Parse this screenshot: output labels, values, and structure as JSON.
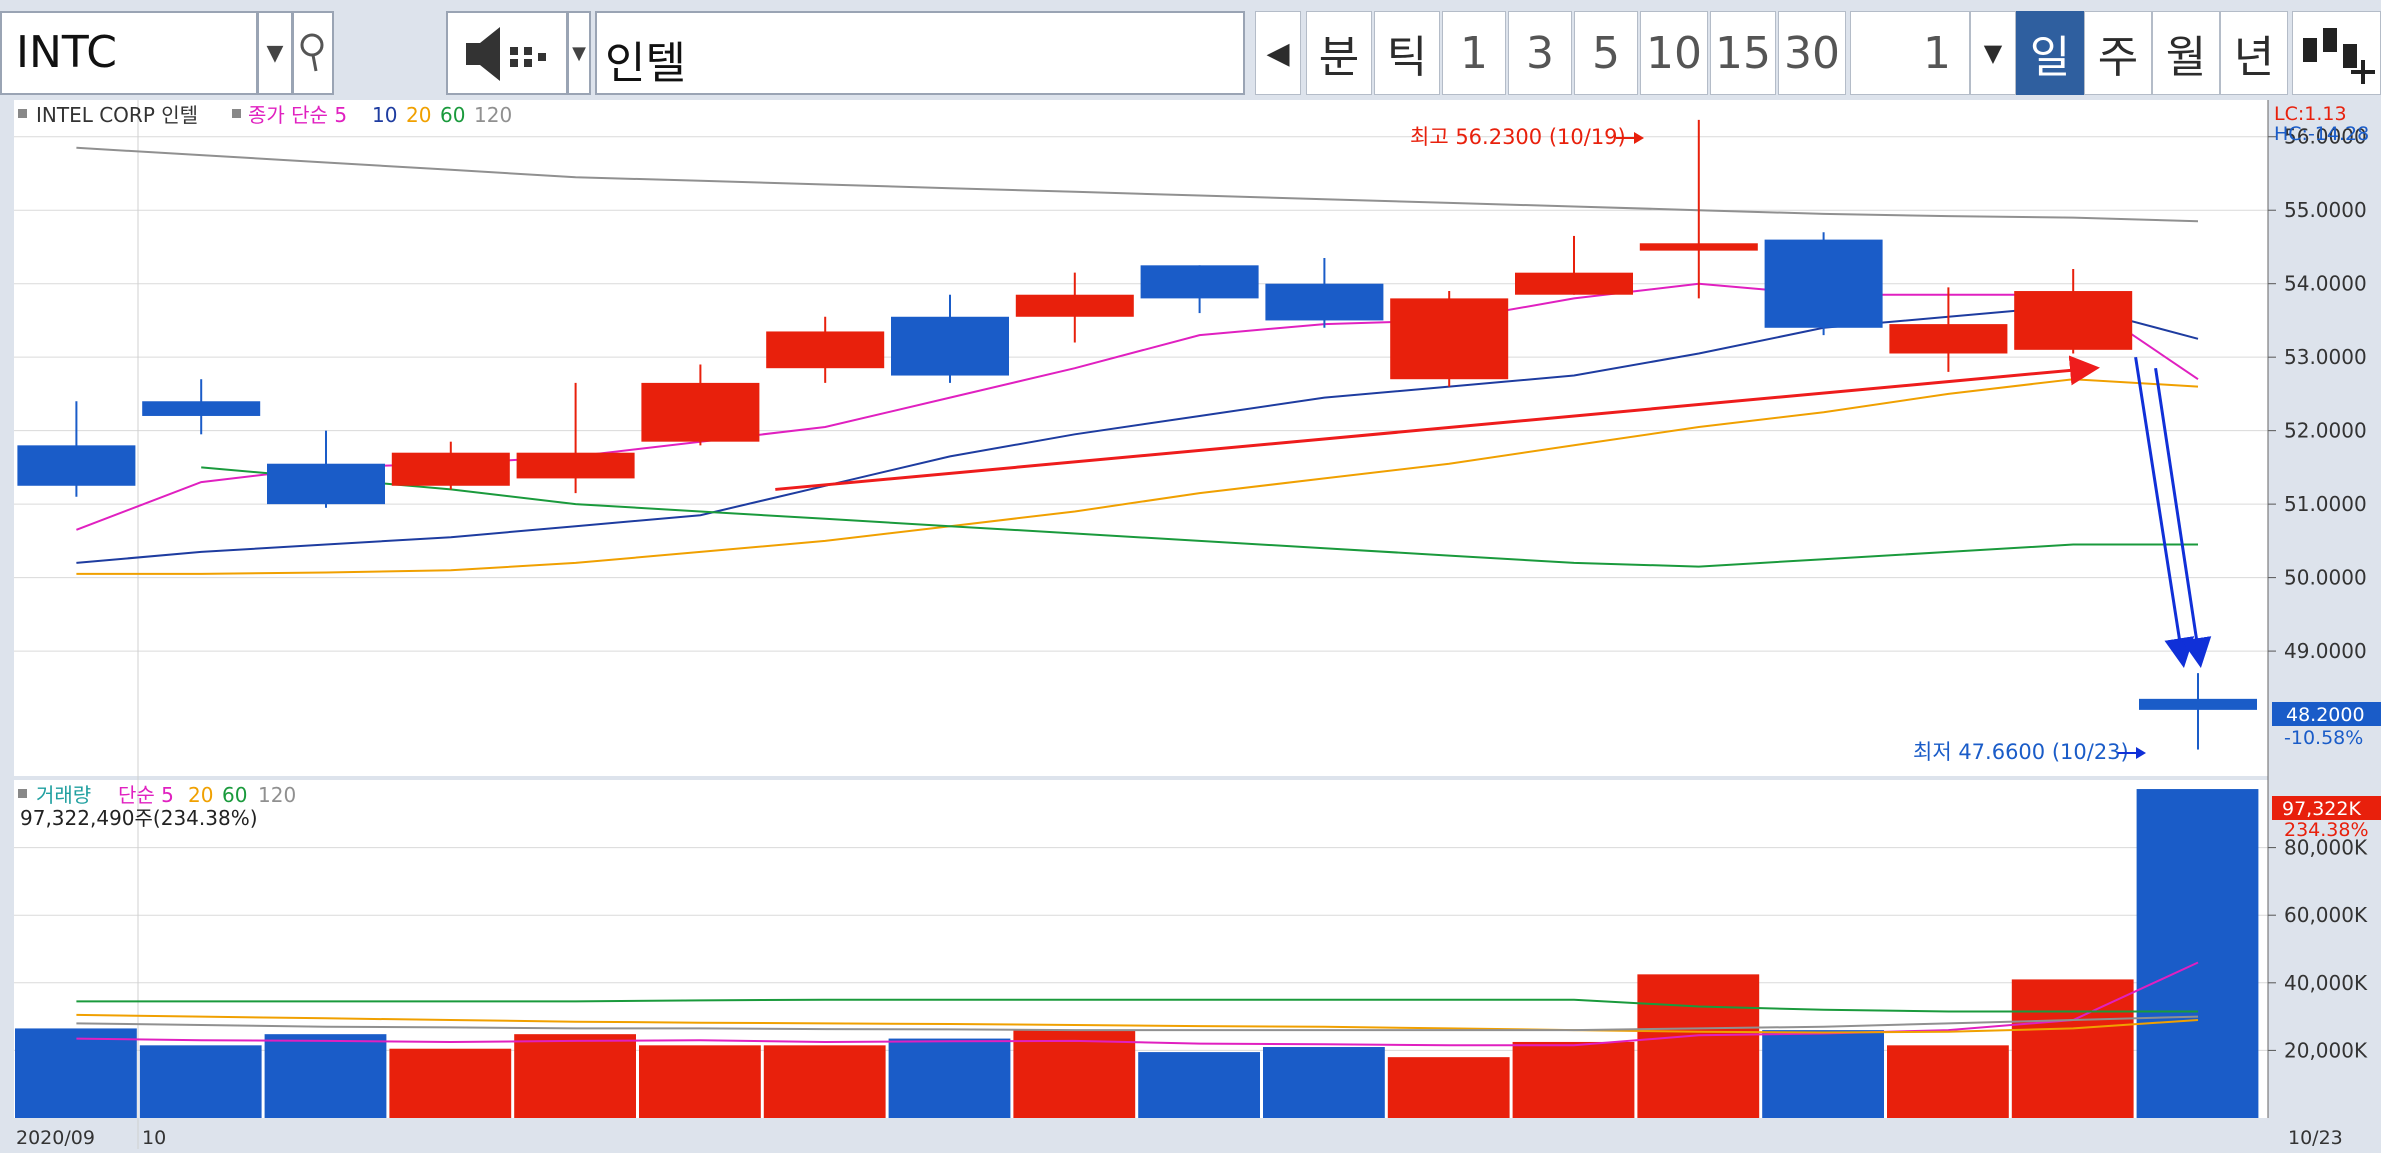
{
  "toolbar": {
    "symbol": "INTC",
    "name": "인텔",
    "period_buttons": [
      "분",
      "틱",
      "1",
      "3",
      "5",
      "10",
      "15",
      "30"
    ],
    "count": "1",
    "interval_buttons": [
      "일",
      "주",
      "월",
      "년"
    ],
    "active_interval": "일"
  },
  "price_legend": {
    "title": "INTEL CORP  인텔",
    "ma_label": "종가 단순 5",
    "ma_periods": [
      "10",
      "20",
      "60",
      "120"
    ]
  },
  "volume_legend": {
    "title": "거래량",
    "ma_label": "단순 5",
    "ma_periods": [
      "20",
      "60",
      "120"
    ],
    "current": "97,322,490주(234.38%)"
  },
  "status": {
    "lc": "LC:1.13",
    "hc": "HC:-14.28"
  },
  "annotations": {
    "high_label": "최고 56.2300 (10/19)",
    "low_label": "최저 47.6600 (10/23)",
    "last_price": "48.2000",
    "last_change": "-10.58%",
    "volume_last": "97,322K",
    "volume_change": "234.38%"
  },
  "colors": {
    "up": "#e8200c",
    "down": "#1a5cc8",
    "ma5": "#e020c0",
    "ma10": "#1e3ca0",
    "ma20": "#f0a000",
    "ma60": "#1a9a3c",
    "ma120": "#909090",
    "trend_up": "#ee1c1c",
    "trend_down": "#1030d8"
  },
  "chart_data": [
    {
      "type": "candlestick",
      "x_labels": [
        "2020/09",
        "10",
        "10/23"
      ],
      "ylim": [
        47.3,
        56.5
      ],
      "y_ticks": [
        "56.0000",
        "55.0000",
        "54.0000",
        "53.0000",
        "52.0000",
        "51.0000",
        "50.0000",
        "49.0000"
      ],
      "candles": [
        {
          "open": 51.8,
          "high": 52.4,
          "low": 51.1,
          "close": 51.25
        },
        {
          "open": 52.4,
          "high": 52.7,
          "low": 51.95,
          "close": 52.2
        },
        {
          "open": 51.55,
          "high": 52.0,
          "low": 50.95,
          "close": 51.0
        },
        {
          "open": 51.25,
          "high": 51.85,
          "low": 51.2,
          "close": 51.7
        },
        {
          "open": 51.35,
          "high": 52.65,
          "low": 51.15,
          "close": 51.7
        },
        {
          "open": 51.85,
          "high": 52.9,
          "low": 51.8,
          "close": 52.65
        },
        {
          "open": 52.85,
          "high": 53.55,
          "low": 52.65,
          "close": 53.35
        },
        {
          "open": 53.55,
          "high": 53.85,
          "low": 52.65,
          "close": 52.75
        },
        {
          "open": 53.55,
          "high": 54.15,
          "low": 53.2,
          "close": 53.85
        },
        {
          "open": 54.25,
          "high": 54.25,
          "low": 53.6,
          "close": 53.8
        },
        {
          "open": 54.0,
          "high": 54.35,
          "low": 53.4,
          "close": 53.5
        },
        {
          "open": 52.7,
          "high": 53.9,
          "low": 52.6,
          "close": 53.8
        },
        {
          "open": 53.85,
          "high": 54.65,
          "low": 53.85,
          "close": 54.15
        },
        {
          "open": 54.45,
          "high": 56.23,
          "low": 53.8,
          "close": 54.55
        },
        {
          "open": 54.6,
          "high": 54.7,
          "low": 53.3,
          "close": 53.4
        },
        {
          "open": 53.05,
          "high": 53.95,
          "low": 52.8,
          "close": 53.45
        },
        {
          "open": 53.1,
          "high": 54.2,
          "low": 53.05,
          "close": 53.9
        },
        {
          "open": 48.35,
          "high": 48.7,
          "low": 47.66,
          "close": 48.2
        }
      ],
      "moving_averages": {
        "5": [
          50.65,
          51.3,
          51.5,
          51.55,
          51.65,
          51.85,
          52.05,
          52.45,
          52.85,
          53.3,
          53.45,
          53.5,
          53.8,
          54.0,
          53.85,
          53.85,
          53.85,
          52.7
        ],
        "10": [
          50.2,
          50.35,
          50.45,
          50.55,
          50.7,
          50.85,
          51.25,
          51.65,
          51.95,
          52.2,
          52.45,
          52.6,
          52.75,
          53.05,
          53.4,
          53.55,
          53.7,
          53.25
        ],
        "20": [
          50.05,
          50.05,
          50.07,
          50.1,
          50.2,
          50.35,
          50.5,
          50.7,
          50.9,
          51.15,
          51.35,
          51.55,
          51.8,
          52.05,
          52.25,
          52.5,
          52.7,
          52.6
        ],
        "60": [
          null,
          51.5,
          51.35,
          51.2,
          51.0,
          50.9,
          50.8,
          50.7,
          50.6,
          50.5,
          50.4,
          50.3,
          50.2,
          50.15,
          50.25,
          50.35,
          50.45,
          50.45
        ],
        "120": [
          55.85,
          55.75,
          55.65,
          55.55,
          55.45,
          55.4,
          55.35,
          55.3,
          55.25,
          55.2,
          55.15,
          55.1,
          55.05,
          55.0,
          54.95,
          54.92,
          54.9,
          54.85
        ]
      }
    },
    {
      "type": "bar",
      "ylim": [
        0,
        100000
      ],
      "y_ticks": [
        "80,000K",
        "60,000K",
        "40,000K",
        "20,000K"
      ],
      "values": [
        26500,
        21500,
        24800,
        20500,
        24800,
        21500,
        21500,
        23500,
        26000,
        19500,
        21000,
        18000,
        22500,
        42500,
        26000,
        21500,
        41000,
        97322
      ],
      "moving_averages": {
        "5": [
          23500,
          23000,
          22800,
          22500,
          22800,
          23000,
          22500,
          22700,
          22800,
          22000,
          21800,
          21500,
          21500,
          24500,
          25000,
          26000,
          29000,
          46000
        ],
        "20": [
          30500,
          30000,
          29500,
          29000,
          28500,
          28200,
          28000,
          27800,
          27500,
          27200,
          27000,
          26500,
          26000,
          25500,
          25300,
          25500,
          26500,
          29000
        ],
        "60": [
          34500,
          34500,
          34500,
          34500,
          34500,
          34800,
          35000,
          35000,
          35000,
          35000,
          35000,
          35000,
          35000,
          33000,
          32000,
          31500,
          31500,
          31500
        ],
        "120": [
          28000,
          27500,
          27000,
          26800,
          26500,
          26500,
          26300,
          26200,
          26000,
          26000,
          26000,
          26000,
          26000,
          26500,
          27000,
          28000,
          29000,
          30000
        ]
      }
    }
  ]
}
